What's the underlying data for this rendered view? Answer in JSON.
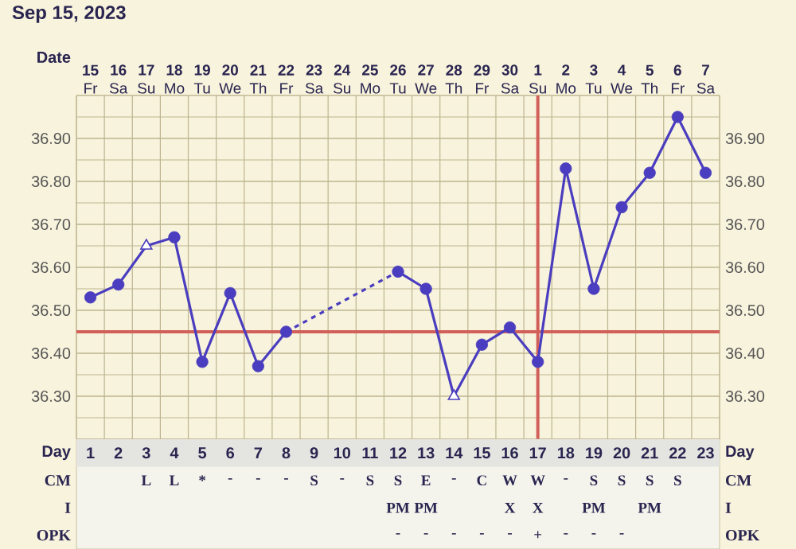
{
  "chart_data": [
    {
      "type": "line",
      "title": "Sep 15, 2023",
      "xlabel": "Date",
      "categories": [
        "**15** Fr",
        "**16** Sa",
        "**17** Su",
        "**18** Mo",
        "**19** Tu",
        "**20** We",
        "**21** Th",
        "**22** Fr",
        "**23** Sa",
        "**24** Su",
        "**25** Mo",
        "**26** Tu",
        "**27** We",
        "**28** Th",
        "**29** Fr",
        "**30** Sa",
        "**1** Su",
        "**2** Mo",
        "**3** Tu",
        "**4** We",
        "**5** Th",
        "**6** Fr",
        "**7** Sa"
      ],
      "series": [
        {
          "type": "line",
          "color": "#4a3dbf",
          "values": [
            36.53,
            36.56,
            36.65,
            36.67,
            36.38,
            36.54,
            36.37,
            36.45,
            null,
            null,
            null,
            null,
            null,
            null,
            null,
            null,
            null,
            null,
            null,
            null,
            null,
            null,
            null
          ]
        },
        {
          "type": "line",
          "color": "#4a3dbf",
          "values": [
            null,
            null,
            null,
            null,
            null,
            null,
            null,
            null,
            null,
            null,
            null,
            36.59,
            36.55,
            36.3,
            36.42,
            36.46,
            36.38,
            36.83,
            36.55,
            36.74,
            36.82,
            36.95,
            36.82
          ]
        },
        {
          "type": "line",
          "color": "#4a3dbf",
          "line_style": "dashed",
          "values": [
            null,
            null,
            null,
            null,
            null,
            null,
            null,
            36.45,
            null,
            null,
            null,
            36.59,
            null,
            null,
            null,
            null,
            null,
            null,
            null,
            null,
            null,
            null,
            null
          ]
        },
        {
          "type": "scatter",
          "color": "#4a3dbf",
          "marker": "circle",
          "values": [
            36.53,
            36.56,
            null,
            36.67,
            36.38,
            36.54,
            36.37,
            36.45,
            null,
            null,
            null,
            36.59,
            36.55,
            null,
            36.42,
            36.46,
            36.38,
            36.83,
            36.55,
            36.74,
            36.82,
            36.95,
            36.82
          ]
        },
        {
          "type": "scatter",
          "color": "#4a3dbf",
          "marker": "triangle",
          "values": [
            null,
            null,
            36.65,
            null,
            null,
            null,
            null,
            null,
            null,
            null,
            null,
            null,
            null,
            36.3,
            null,
            null,
            null,
            null,
            null,
            null,
            null,
            null,
            null
          ]
        }
      ],
      "ylim": [
        36.2,
        37.0
      ],
      "yticks": [
        {
          "value": 36.3,
          "label": "36.30"
        },
        {
          "value": 36.4,
          "label": "36.40"
        },
        {
          "value": 36.5,
          "label": "36.50"
        },
        {
          "value": 36.6,
          "label": "36.60"
        },
        {
          "value": 36.7,
          "label": "36.70"
        },
        {
          "value": 36.8,
          "label": "36.80"
        },
        {
          "value": 36.9,
          "label": "36.90"
        }
      ],
      "y2lim": [
        36.2,
        37.0
      ],
      "y2ticks": [
        {
          "value": 36.3,
          "label": "36.30"
        },
        {
          "value": 36.4,
          "label": "36.40"
        },
        {
          "value": 36.5,
          "label": "36.50"
        },
        {
          "value": 36.6,
          "label": "36.60"
        },
        {
          "value": 36.7,
          "label": "36.70"
        },
        {
          "value": 36.8,
          "label": "36.80"
        },
        {
          "value": 36.9,
          "label": "36.90"
        }
      ],
      "grid": true,
      "ref_lines": [
        {
          "axis": "y",
          "value": 36.45,
          "color": "#d2605a"
        },
        {
          "axis": "x",
          "value": "**1** Su",
          "color": "#d2605a"
        }
      ]
    },
    {
      "type": "heatmap",
      "xlabel": "Day",
      "categories": [
        "1",
        "2",
        "3",
        "4",
        "5",
        "6",
        "7",
        "8",
        "9",
        "10",
        "11",
        "12",
        "13",
        "14",
        "15",
        "16",
        "17",
        "18",
        "19",
        "20",
        "21",
        "22",
        "23"
      ],
      "y_categories": [
        "CM",
        "I",
        "OPK"
      ],
      "y2_categories": [
        "CM",
        "I",
        "OPK"
      ],
      "cells": [
        [
          null,
          null,
          null,
          null,
          null,
          null,
          null,
          null,
          null,
          null,
          null,
          null,
          null,
          null,
          null,
          null,
          null,
          null,
          null,
          null,
          null,
          null,
          null
        ],
        [
          null,
          null,
          null,
          null,
          null,
          null,
          null,
          null,
          null,
          null,
          null,
          null,
          null,
          null,
          null,
          null,
          null,
          null,
          null,
          null,
          null,
          null,
          null
        ],
        [
          null,
          null,
          null,
          null,
          null,
          null,
          null,
          null,
          null,
          null,
          null,
          null,
          null,
          null,
          null,
          null,
          null,
          null,
          null,
          null,
          null,
          null,
          null
        ]
      ],
      "cell_labels": [
        [
          null,
          null,
          "L",
          "L",
          "*",
          "-",
          "-",
          "-",
          "S",
          "-",
          "S",
          "S",
          "E",
          "-",
          "C",
          "W",
          "W",
          "-",
          "S",
          "S",
          "S",
          "S",
          null
        ],
        [
          null,
          null,
          null,
          null,
          null,
          null,
          null,
          null,
          null,
          null,
          null,
          "PM",
          "PM",
          null,
          null,
          "X",
          "X",
          null,
          "PM",
          null,
          "PM",
          null,
          null
        ],
        [
          null,
          null,
          null,
          null,
          null,
          null,
          null,
          null,
          null,
          null,
          null,
          "-",
          "-",
          "-",
          "-",
          "-",
          "+",
          "-",
          "-",
          "-",
          null,
          null,
          null
        ]
      ]
    }
  ]
}
